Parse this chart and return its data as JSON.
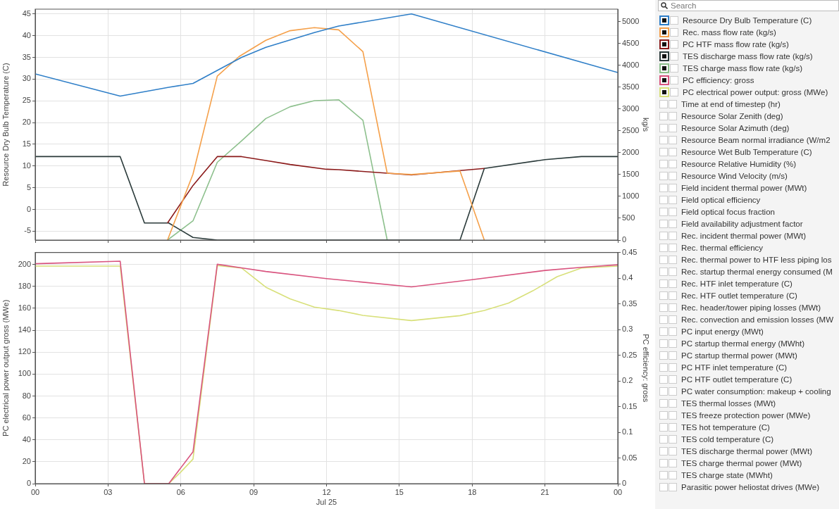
{
  "chart_data": [
    {
      "type": "line",
      "ylabel": "Resource Dry Bulb Temperature (C)",
      "y2label": "kg/s",
      "xlim": [
        0,
        24
      ],
      "xticks": [
        {
          "value": 0,
          "label": null
        },
        {
          "value": 3,
          "label": null
        },
        {
          "value": 6,
          "label": null
        },
        {
          "value": 9,
          "label": null
        },
        {
          "value": 12,
          "label": null
        },
        {
          "value": 15,
          "label": null
        },
        {
          "value": 18,
          "label": null
        },
        {
          "value": 21,
          "label": null
        },
        {
          "value": 24,
          "label": null
        }
      ],
      "ylim": [
        -7.05,
        46.1
      ],
      "yticks": [
        -5,
        0,
        5,
        10,
        15,
        20,
        25,
        30,
        35,
        40,
        45
      ],
      "y2lim": [
        0,
        5283
      ],
      "y2ticks": [
        0,
        500,
        1000,
        1500,
        2000,
        2500,
        3000,
        3500,
        4000,
        4500,
        5000
      ],
      "grid": true,
      "tick_labels": "y",
      "legend": "right",
      "series": [
        {
          "name": "Resource Dry Bulb Temperature (C)",
          "color": "#2f7fc8",
          "x": [
            0,
            3.5,
            5.5,
            6.5,
            7.5,
            8.5,
            9.5,
            10.5,
            11.5,
            12.5,
            15.5,
            24
          ],
          "values": [
            31.2,
            26.1,
            28.1,
            29,
            32,
            35,
            37.3,
            39,
            40.7,
            42.2,
            45,
            31.5
          ]
        },
        {
          "name": "Rec. mass flow rate (kg/s)",
          "color": "#f5a04a",
          "axis": "y2",
          "x": [
            5.45,
            6.5,
            7.5,
            8.4,
            9.5,
            10.5,
            11.5,
            12.5,
            13.5,
            14.5,
            15.5,
            17.5,
            18.5
          ],
          "values": [
            0,
            1510,
            3750,
            4200,
            4570,
            4790,
            4860,
            4810,
            4310,
            1530,
            1500,
            1580,
            0
          ]
        },
        {
          "name": "PC HTF mass flow rate (kg/s)",
          "color": "#8b1a1a",
          "axis": "y2",
          "x": [
            5.45,
            6.5,
            7.5,
            8.5,
            9.5,
            10.5,
            12,
            12.5,
            15.5,
            17.5,
            18.5
          ],
          "values": [
            390,
            1250,
            1910,
            1910,
            1820,
            1730,
            1620,
            1610,
            1490,
            1590,
            1640
          ]
        },
        {
          "name": "TES discharge mass flow rate (kg/s)",
          "color": "#2a3a3a",
          "axis": "y2",
          "x": [
            0,
            3.5,
            4.5,
            5.5,
            6.5,
            7.5,
            17.5,
            18.5,
            21,
            22.5,
            24
          ],
          "values": [
            1910,
            1910,
            390,
            390,
            60,
            0,
            0,
            1640,
            1840,
            1910,
            1910
          ]
        },
        {
          "name": "TES charge mass flow rate (kg/s)",
          "color": "#8dc08d",
          "axis": "y2",
          "x": [
            5.45,
            6.5,
            7.5,
            8.5,
            9.5,
            10.5,
            11.5,
            12.5,
            13.5,
            14.5
          ],
          "values": [
            0,
            440,
            1780,
            2270,
            2780,
            3050,
            3190,
            3210,
            2740,
            0
          ]
        }
      ],
      "annotations": [
        "Search",
        "Time at end of timestep (hr)",
        "Resource Solar Zenith (deg)",
        "Resource Solar Azimuth (deg)",
        "Resource Beam normal irradiance (W/m2",
        "Resource Wet Bulb Temperature (C)",
        "Resource Relative Humidity (%)",
        "Resource Wind Velocity (m/s)",
        "Field incident thermal power (MWt)",
        "Field optical efficiency",
        "Field optical focus fraction",
        "Field availability adjustment factor",
        "Rec. incident thermal power (MWt)",
        "Rec. thermal efficiency",
        "Rec. thermal power to HTF less piping los",
        "Rec. startup thermal energy consumed (M",
        "Rec. HTF inlet temperature (C)",
        "Rec. HTF outlet temperature (C)",
        "Rec. header/tower piping losses (MWt)",
        "Rec. convection and emission losses (MW",
        "PC input energy (MWt)",
        "PC startup thermal energy (MWht)",
        "PC startup thermal power (MWt)",
        "PC HTF inlet temperature (C)",
        "PC HTF outlet temperature (C)",
        "PC water consumption: makeup + cooling",
        "TES thermal losses (MWt)",
        "TES freeze protection power (MWe)",
        "TES hot temperature (C)",
        "TES cold temperature (C)",
        "TES discharge thermal power (MWt)",
        "TES charge thermal power (MWt)",
        "TES charge state (MWht)",
        "Parasitic power heliostat drives (MWe)"
      ]
    },
    {
      "type": "line",
      "xlabel": "Jul 25",
      "ylabel": "PC electrical power output gross (MWe)",
      "y2label": "PC efficiency: gross",
      "xlim": [
        0,
        24
      ],
      "xticks": [
        {
          "value": 0,
          "label": "00"
        },
        {
          "value": 3,
          "label": "03"
        },
        {
          "value": 6,
          "label": "06"
        },
        {
          "value": 9,
          "label": "09"
        },
        {
          "value": 12,
          "label": "12"
        },
        {
          "value": 15,
          "label": "15"
        },
        {
          "value": 18,
          "label": "18"
        },
        {
          "value": 21,
          "label": "21"
        },
        {
          "value": 24,
          "label": "00"
        }
      ],
      "ylim": [
        0,
        211
      ],
      "yticks": [
        0,
        20,
        40,
        60,
        80,
        100,
        120,
        140,
        160,
        180,
        200
      ],
      "y2lim": [
        0,
        0.45
      ],
      "y2ticks": [
        0,
        0.05,
        0.1,
        0.15,
        0.2,
        0.25,
        0.3,
        0.35,
        0.4,
        0.45
      ],
      "grid": true,
      "legend": "right",
      "series": [
        {
          "name": "PC efficiency: gross",
          "color": "#d9547f",
          "axis": "y2",
          "x": [
            0,
            3.5,
            4.5,
            5.5,
            6.5,
            7.5,
            8.5,
            9.5,
            12,
            15.5,
            18,
            21,
            22.5,
            24
          ],
          "values": [
            0.428,
            0.433,
            0,
            0,
            0.062,
            0.427,
            0.42,
            0.413,
            0.399,
            0.383,
            0.397,
            0.415,
            0.421,
            0.426
          ]
        },
        {
          "name": "PC electrical power output: gross (MWe)",
          "color": "#d8e07a",
          "x": [
            0,
            3.5,
            4.5,
            5.5,
            6,
            6.5,
            7.5,
            8.5,
            9.5,
            10.5,
            11.5,
            12.5,
            13.5,
            15.5,
            17.5,
            18.5,
            19.5,
            20.5,
            21.5,
            22.5,
            24
          ],
          "values": [
            198.5,
            198.5,
            0,
            0,
            10.7,
            22.4,
            199,
            196.8,
            179.3,
            168.6,
            161.1,
            158,
            153.6,
            148.8,
            153.3,
            158,
            164.8,
            176,
            188.9,
            196.8,
            198.5
          ]
        }
      ]
    }
  ]
}
